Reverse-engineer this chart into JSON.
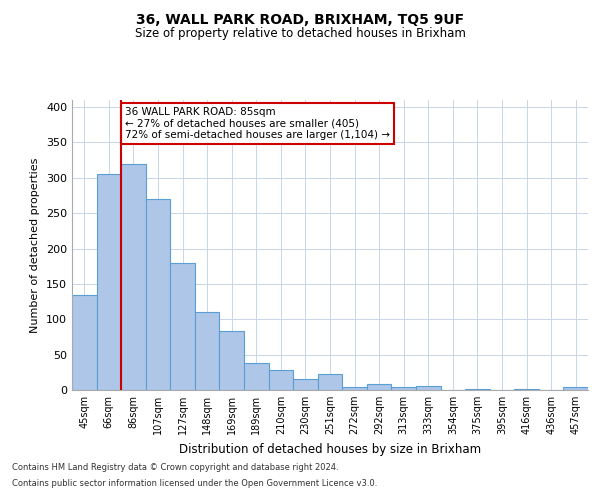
{
  "title1": "36, WALL PARK ROAD, BRIXHAM, TQ5 9UF",
  "title2": "Size of property relative to detached houses in Brixham",
  "xlabel": "Distribution of detached houses by size in Brixham",
  "ylabel": "Number of detached properties",
  "categories": [
    "45sqm",
    "66sqm",
    "86sqm",
    "107sqm",
    "127sqm",
    "148sqm",
    "169sqm",
    "189sqm",
    "210sqm",
    "230sqm",
    "251sqm",
    "272sqm",
    "292sqm",
    "313sqm",
    "333sqm",
    "354sqm",
    "375sqm",
    "395sqm",
    "416sqm",
    "436sqm",
    "457sqm"
  ],
  "values": [
    135,
    305,
    320,
    270,
    180,
    110,
    83,
    38,
    28,
    15,
    23,
    4,
    8,
    4,
    5,
    0,
    2,
    0,
    2,
    0,
    4
  ],
  "bar_color": "#aec6e8",
  "bar_edgecolor": "#5a9fd4",
  "highlight_bar_index": 2,
  "highlight_line_color": "#cc0000",
  "annotation_text": "36 WALL PARK ROAD: 85sqm\n← 27% of detached houses are smaller (405)\n72% of semi-detached houses are larger (1,104) →",
  "annotation_box_color": "#ffffff",
  "annotation_box_edgecolor": "#cc0000",
  "ylim": [
    0,
    410
  ],
  "yticks": [
    0,
    50,
    100,
    150,
    200,
    250,
    300,
    350,
    400
  ],
  "footer1": "Contains HM Land Registry data © Crown copyright and database right 2024.",
  "footer2": "Contains public sector information licensed under the Open Government Licence v3.0.",
  "background_color": "#ffffff",
  "grid_color": "#c8d4e8"
}
